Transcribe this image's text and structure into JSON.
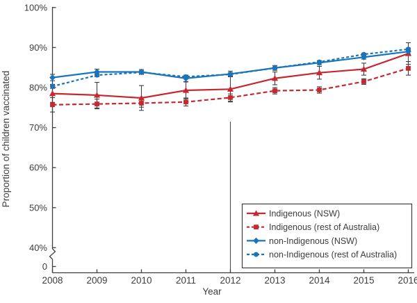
{
  "chart_data": {
    "type": "line",
    "title": "",
    "xlabel": "Year",
    "ylabel": "Proportion of children vaccinated",
    "x": [
      2008,
      2009,
      2010,
      2011,
      2012,
      2013,
      2014,
      2015,
      2016
    ],
    "x_tick_labels": [
      "2008",
      "2009",
      "2010",
      "2011",
      "2012",
      "2013",
      "2014",
      "2015",
      "2016"
    ],
    "y_ticks": [
      {
        "label": "100%",
        "value": 100
      },
      {
        "label": "90%",
        "value": 90
      },
      {
        "label": "80%",
        "value": 80
      },
      {
        "label": "70%",
        "value": 70
      },
      {
        "label": "60%",
        "value": 60
      },
      {
        "label": "50%",
        "value": 50
      },
      {
        "label": "40%",
        "value": 40
      },
      {
        "label": "0",
        "value": 0
      }
    ],
    "ylim_display": [
      40,
      100
    ],
    "axis_break": true,
    "grid": false,
    "reference_line_x": 2012,
    "legend_position": "lower right",
    "series": [
      {
        "name": "Indigenous (NSW)",
        "color": "#c5282f",
        "line": "solid",
        "marker": "triangle",
        "values": [
          78.5,
          78.1,
          77.4,
          79.3,
          79.6,
          82.3,
          83.7,
          84.6,
          88.5
        ],
        "errors": [
          2.2,
          3.2,
          3.1,
          2.1,
          3.2,
          1.6,
          1.6,
          1.5,
          2.7
        ]
      },
      {
        "name": "Indigenous (rest of Australia)",
        "color": "#c5282f",
        "line": "dashed",
        "marker": "square",
        "values": [
          75.7,
          75.9,
          76.1,
          76.4,
          77.5,
          79.2,
          79.4,
          81.5,
          84.8
        ],
        "errors": [
          1.8,
          1.2,
          1.0,
          1.0,
          0.9,
          0.8,
          0.8,
          0.7,
          1.7
        ]
      },
      {
        "name": "non-Indigenous (NSW)",
        "color": "#1874bc",
        "line": "solid",
        "marker": "diamond",
        "values": [
          82.5,
          83.9,
          83.9,
          82.3,
          83.4,
          84.9,
          86.2,
          87.6,
          89.0
        ],
        "errors": [
          0.8,
          0.7,
          0.6,
          0.8,
          0.7,
          0.6,
          0.5,
          0.5,
          0.6
        ]
      },
      {
        "name": "non-Indigenous (rest of Australia)",
        "color": "#1874bc",
        "line": "dashed",
        "marker": "circle",
        "values": [
          80.3,
          83.1,
          83.8,
          82.7,
          83.3,
          84.9,
          86.4,
          88.3,
          89.6
        ],
        "errors": [
          0.5,
          0.4,
          0.4,
          0.4,
          0.4,
          0.3,
          0.3,
          0.3,
          0.3
        ]
      }
    ]
  },
  "colors": {
    "red": "#c5282f",
    "blue": "#1874bc",
    "axis": "#3d3d3d",
    "error_bar": "#3f3f3f",
    "reference_line": "#4a4a4a",
    "legend_border": "#3c3c3c",
    "background": "#ffffff"
  }
}
